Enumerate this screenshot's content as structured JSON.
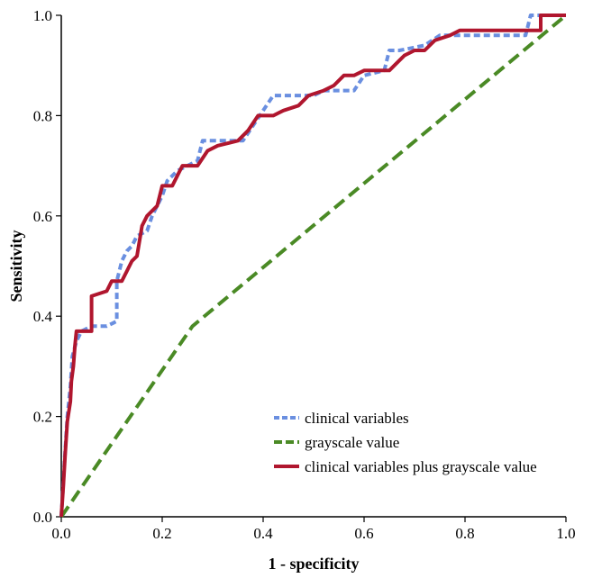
{
  "chart_data": {
    "type": "line",
    "title": "",
    "xlabel": "1 - specificity",
    "ylabel": "Sensitivity",
    "xlim": [
      0.0,
      1.0
    ],
    "ylim": [
      0.0,
      1.0
    ],
    "xticks": [
      "0.0",
      "0.2",
      "0.4",
      "0.6",
      "0.8",
      "1.0"
    ],
    "yticks": [
      "0.0",
      "0.2",
      "0.4",
      "0.6",
      "0.8",
      "1.0"
    ],
    "grid": false,
    "legend_position": "bottom-right",
    "series": [
      {
        "name": "clinical variables",
        "color": "#6a8fe0",
        "style": "dashed",
        "points": [
          [
            0,
            0
          ],
          [
            0.003,
            0.05
          ],
          [
            0.007,
            0.12
          ],
          [
            0.012,
            0.2
          ],
          [
            0.018,
            0.26
          ],
          [
            0.022,
            0.32
          ],
          [
            0.03,
            0.35
          ],
          [
            0.04,
            0.37
          ],
          [
            0.06,
            0.38
          ],
          [
            0.09,
            0.38
          ],
          [
            0.11,
            0.39
          ],
          [
            0.11,
            0.47
          ],
          [
            0.12,
            0.51
          ],
          [
            0.13,
            0.53
          ],
          [
            0.14,
            0.54
          ],
          [
            0.15,
            0.56
          ],
          [
            0.17,
            0.57
          ],
          [
            0.18,
            0.6
          ],
          [
            0.2,
            0.64
          ],
          [
            0.21,
            0.67
          ],
          [
            0.23,
            0.69
          ],
          [
            0.25,
            0.7
          ],
          [
            0.27,
            0.71
          ],
          [
            0.28,
            0.75
          ],
          [
            0.33,
            0.75
          ],
          [
            0.36,
            0.75
          ],
          [
            0.38,
            0.78
          ],
          [
            0.4,
            0.81
          ],
          [
            0.42,
            0.84
          ],
          [
            0.5,
            0.84
          ],
          [
            0.52,
            0.85
          ],
          [
            0.58,
            0.85
          ],
          [
            0.6,
            0.88
          ],
          [
            0.64,
            0.89
          ],
          [
            0.65,
            0.93
          ],
          [
            0.67,
            0.93
          ],
          [
            0.72,
            0.94
          ],
          [
            0.75,
            0.96
          ],
          [
            0.8,
            0.96
          ],
          [
            0.92,
            0.96
          ],
          [
            0.93,
            1.0
          ],
          [
            1.0,
            1.0
          ]
        ]
      },
      {
        "name": "grayscale value",
        "color": "#4a8a25",
        "style": "dashed",
        "points": [
          [
            0,
            0
          ],
          [
            0.26,
            0.38
          ],
          [
            1.0,
            1.0
          ]
        ]
      },
      {
        "name": "clinical variables plus grayscale value",
        "color": "#b0162e",
        "style": "solid",
        "points": [
          [
            0,
            0
          ],
          [
            0.004,
            0.06
          ],
          [
            0.008,
            0.13
          ],
          [
            0.012,
            0.19
          ],
          [
            0.018,
            0.23
          ],
          [
            0.02,
            0.27
          ],
          [
            0.024,
            0.3
          ],
          [
            0.027,
            0.34
          ],
          [
            0.03,
            0.37
          ],
          [
            0.06,
            0.37
          ],
          [
            0.06,
            0.44
          ],
          [
            0.09,
            0.45
          ],
          [
            0.1,
            0.47
          ],
          [
            0.12,
            0.47
          ],
          [
            0.13,
            0.49
          ],
          [
            0.14,
            0.51
          ],
          [
            0.15,
            0.52
          ],
          [
            0.16,
            0.58
          ],
          [
            0.17,
            0.6
          ],
          [
            0.18,
            0.61
          ],
          [
            0.19,
            0.62
          ],
          [
            0.2,
            0.66
          ],
          [
            0.22,
            0.66
          ],
          [
            0.23,
            0.68
          ],
          [
            0.24,
            0.7
          ],
          [
            0.27,
            0.7
          ],
          [
            0.29,
            0.73
          ],
          [
            0.31,
            0.74
          ],
          [
            0.35,
            0.75
          ],
          [
            0.37,
            0.77
          ],
          [
            0.39,
            0.8
          ],
          [
            0.42,
            0.8
          ],
          [
            0.44,
            0.81
          ],
          [
            0.47,
            0.82
          ],
          [
            0.49,
            0.84
          ],
          [
            0.52,
            0.85
          ],
          [
            0.54,
            0.86
          ],
          [
            0.56,
            0.88
          ],
          [
            0.58,
            0.88
          ],
          [
            0.6,
            0.89
          ],
          [
            0.65,
            0.89
          ],
          [
            0.66,
            0.9
          ],
          [
            0.68,
            0.92
          ],
          [
            0.7,
            0.93
          ],
          [
            0.72,
            0.93
          ],
          [
            0.74,
            0.95
          ],
          [
            0.77,
            0.96
          ],
          [
            0.79,
            0.97
          ],
          [
            0.84,
            0.97
          ],
          [
            0.95,
            0.97
          ],
          [
            0.95,
            1.0
          ],
          [
            1.0,
            1.0
          ]
        ]
      }
    ]
  }
}
